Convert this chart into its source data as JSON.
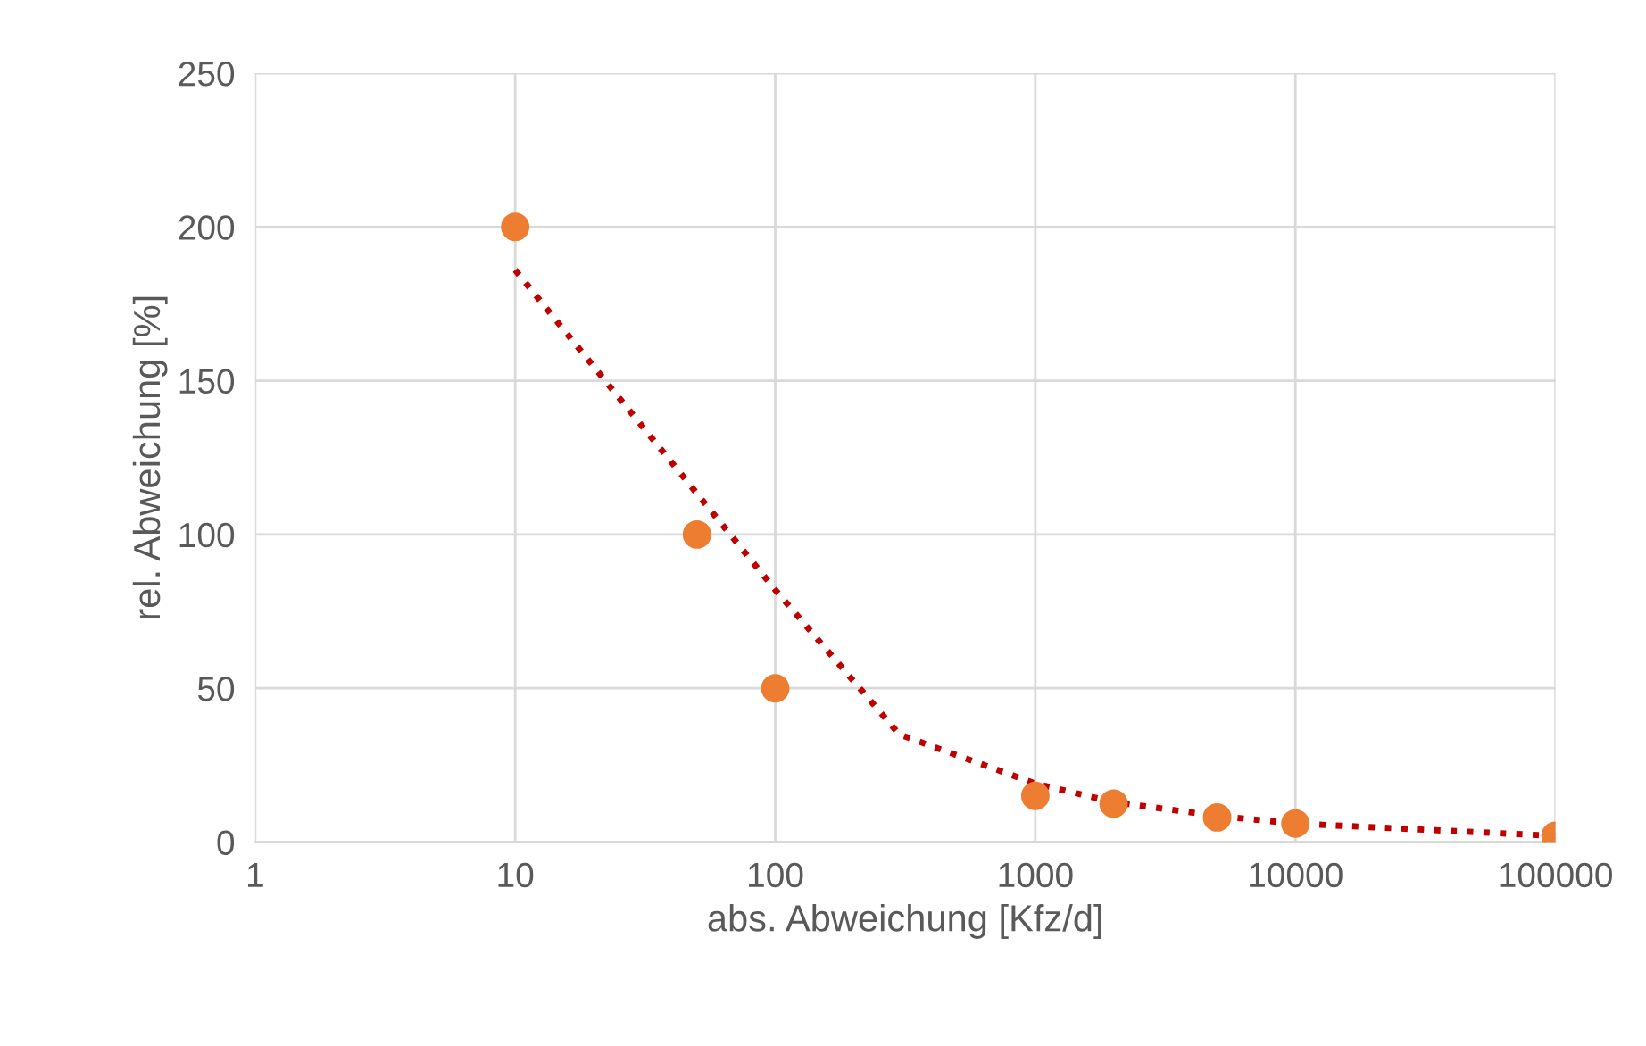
{
  "chart_data": {
    "type": "scatter",
    "xlabel": "abs. Abweichung [Kfz/d]",
    "ylabel": "rel. Abweichung [%]",
    "log": "x",
    "xlim": [
      1,
      100000
    ],
    "xticks": [
      1,
      10,
      100,
      1000,
      10000,
      100000
    ],
    "ylim": [
      0,
      250
    ],
    "yticks": [
      0,
      50,
      100,
      150,
      200,
      250
    ],
    "grid": true,
    "marker": "circle",
    "series": [
      {
        "color": "#ed7d31",
        "x": [
          10,
          50,
          100,
          1000,
          2000,
          5000,
          10000,
          100000
        ],
        "values": [
          200,
          100,
          50,
          15,
          12.5,
          8,
          6,
          2
        ]
      },
      {
        "type": "line",
        "color": "#c00000",
        "line_style": "dotted",
        "marker": "none",
        "x": [
          10,
          100,
          300,
          1000,
          2000,
          5000,
          10000,
          100000
        ],
        "values": [
          186,
          82,
          35,
          19,
          13,
          8.5,
          6,
          2
        ]
      }
    ]
  }
}
